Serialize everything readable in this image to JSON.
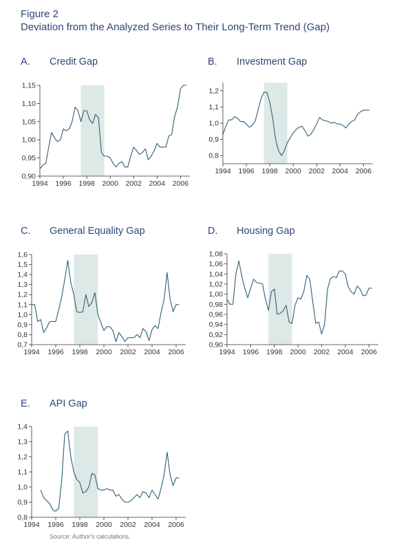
{
  "figure": {
    "label": "Figure 2",
    "title": "Deviation from the Analyzed Series to Their Long-Term Trend (Gap)",
    "source": "Source: Author's calculations."
  },
  "colors": {
    "line": "#2c5f73",
    "shade": "#dde9e6",
    "axis": "#333333",
    "title": "#2f4478"
  },
  "chart_data": [
    {
      "id": "A",
      "type": "line",
      "letter": "A.",
      "title": "Credit Gap",
      "xlim": [
        1994,
        2006.8
      ],
      "ylim": [
        0.9,
        1.15
      ],
      "yticks": [
        0.9,
        0.95,
        1.0,
        1.05,
        1.1,
        1.15
      ],
      "ytick_labels": [
        "0,90",
        "0,95",
        "1,00",
        "1,05",
        "1,10",
        "1,15"
      ],
      "xticks": [
        1994,
        1996,
        1998,
        2000,
        2002,
        2004,
        2006
      ],
      "xtick_labels": [
        "1994",
        "1996",
        "1998",
        "2000",
        "2002",
        "2004",
        "2006"
      ],
      "shade": [
        1997.5,
        1999.5
      ],
      "x": [
        1994.0,
        1994.25,
        1994.5,
        1994.75,
        1995.0,
        1995.25,
        1995.5,
        1995.75,
        1996.0,
        1996.25,
        1996.5,
        1996.75,
        1997.0,
        1997.25,
        1997.5,
        1997.75,
        1998.0,
        1998.25,
        1998.5,
        1998.75,
        1999.0,
        1999.25,
        1999.5,
        1999.75,
        2000.0,
        2000.25,
        2000.5,
        2000.75,
        2001.0,
        2001.25,
        2001.5,
        2001.75,
        2002.0,
        2002.25,
        2002.5,
        2002.75,
        2003.0,
        2003.25,
        2003.5,
        2003.75,
        2004.0,
        2004.25,
        2004.5,
        2004.75,
        2005.0,
        2005.25,
        2005.5,
        2005.75,
        2006.0,
        2006.25,
        2006.5
      ],
      "y": [
        0.92,
        0.93,
        0.935,
        0.98,
        1.02,
        1.005,
        0.995,
        1.0,
        1.03,
        1.025,
        1.03,
        1.05,
        1.09,
        1.08,
        1.05,
        1.08,
        1.08,
        1.055,
        1.045,
        1.07,
        1.06,
        0.965,
        0.955,
        0.955,
        0.95,
        0.935,
        0.925,
        0.935,
        0.94,
        0.925,
        0.925,
        0.955,
        0.98,
        0.97,
        0.96,
        0.965,
        0.975,
        0.945,
        0.955,
        0.97,
        0.99,
        0.98,
        0.98,
        0.98,
        1.01,
        1.015,
        1.065,
        1.09,
        1.14,
        1.15,
        1.15
      ]
    },
    {
      "id": "B",
      "type": "line",
      "letter": "B.",
      "title": "Investment Gap",
      "xlim": [
        1994,
        2006.8
      ],
      "ylim": [
        0.75,
        1.25
      ],
      "yticks": [
        0.8,
        0.9,
        1.0,
        1.1,
        1.2
      ],
      "ytick_labels": [
        "0,8",
        "0,9",
        "1,0",
        "1,1",
        "1,2"
      ],
      "xticks": [
        1994,
        1996,
        1998,
        2000,
        2002,
        2004,
        2006
      ],
      "xtick_labels": [
        "1994",
        "1996",
        "1998",
        "2000",
        "2002",
        "2004",
        "2006"
      ],
      "shade": [
        1997.5,
        1999.5
      ],
      "x": [
        1994.0,
        1994.25,
        1994.5,
        1994.75,
        1995.0,
        1995.25,
        1995.5,
        1995.75,
        1996.0,
        1996.25,
        1996.5,
        1996.75,
        1997.0,
        1997.25,
        1997.5,
        1997.75,
        1998.0,
        1998.25,
        1998.5,
        1998.75,
        1999.0,
        1999.25,
        1999.5,
        1999.75,
        2000.0,
        2000.25,
        2000.5,
        2000.75,
        2001.0,
        2001.25,
        2001.5,
        2001.75,
        2002.0,
        2002.25,
        2002.5,
        2002.75,
        2003.0,
        2003.25,
        2003.5,
        2003.75,
        2004.0,
        2004.25,
        2004.5,
        2004.75,
        2005.0,
        2005.25,
        2005.5,
        2005.75,
        2006.0,
        2006.25,
        2006.5
      ],
      "y": [
        0.93,
        0.98,
        1.02,
        1.02,
        1.04,
        1.03,
        1.01,
        1.01,
        0.995,
        0.975,
        0.985,
        1.01,
        1.08,
        1.15,
        1.19,
        1.19,
        1.13,
        1.03,
        0.9,
        0.83,
        0.8,
        0.83,
        0.88,
        0.91,
        0.94,
        0.96,
        0.975,
        0.98,
        0.955,
        0.92,
        0.93,
        0.96,
        0.995,
        1.035,
        1.02,
        1.015,
        1.01,
        1.0,
        1.005,
        0.995,
        0.995,
        0.985,
        0.97,
        0.995,
        1.01,
        1.02,
        1.055,
        1.07,
        1.08,
        1.08,
        1.08
      ]
    },
    {
      "id": "C",
      "type": "line",
      "letter": "C.",
      "title": "General Equality Gap",
      "xlim": [
        1994,
        2006.8
      ],
      "ylim": [
        0.7,
        1.6
      ],
      "yticks": [
        0.7,
        0.8,
        0.9,
        1.0,
        1.1,
        1.2,
        1.3,
        1.4,
        1.5,
        1.6
      ],
      "ytick_labels": [
        "0,7",
        "0,8",
        "0,9",
        "1,0",
        "1,1",
        "1,2",
        "1,3",
        "1,4",
        "1,5",
        "1,6"
      ],
      "xticks": [
        1994,
        1996,
        1998,
        2000,
        2002,
        2004,
        2006
      ],
      "xtick_labels": [
        "1994",
        "1996",
        "1998",
        "2000",
        "2002",
        "2004",
        "2006"
      ],
      "shade": [
        1997.5,
        1999.5
      ],
      "x": [
        1994.0,
        1994.25,
        1994.5,
        1994.75,
        1995.0,
        1995.25,
        1995.5,
        1995.75,
        1996.0,
        1996.25,
        1996.5,
        1996.75,
        1997.0,
        1997.25,
        1997.5,
        1997.75,
        1998.0,
        1998.25,
        1998.5,
        1998.75,
        1999.0,
        1999.25,
        1999.5,
        1999.75,
        2000.0,
        2000.25,
        2000.5,
        2000.75,
        2001.0,
        2001.25,
        2001.5,
        2001.75,
        2002.0,
        2002.25,
        2002.5,
        2002.75,
        2003.0,
        2003.25,
        2003.5,
        2003.75,
        2004.0,
        2004.25,
        2004.5,
        2004.75,
        2005.0,
        2005.25,
        2005.5,
        2005.75,
        2006.0,
        2006.25
      ],
      "y": [
        1.1,
        1.1,
        0.93,
        0.95,
        0.82,
        0.87,
        0.93,
        0.93,
        0.93,
        1.05,
        1.18,
        1.35,
        1.54,
        1.32,
        1.2,
        1.03,
        1.02,
        1.03,
        1.2,
        1.08,
        1.12,
        1.22,
        1.0,
        0.92,
        0.84,
        0.88,
        0.88,
        0.84,
        0.73,
        0.82,
        0.78,
        0.73,
        0.77,
        0.77,
        0.77,
        0.8,
        0.77,
        0.86,
        0.83,
        0.74,
        0.85,
        0.89,
        0.86,
        1.02,
        1.15,
        1.42,
        1.15,
        1.03,
        1.1,
        1.1
      ]
    },
    {
      "id": "D",
      "type": "line",
      "letter": "D.",
      "title": "Housing Gap",
      "xlim": [
        1994,
        2006.8
      ],
      "ylim": [
        0.9,
        1.08
      ],
      "yticks": [
        0.9,
        0.92,
        0.94,
        0.96,
        0.98,
        1.0,
        1.02,
        1.04,
        1.06,
        1.08
      ],
      "ytick_labels": [
        "0,90",
        "0,92",
        "0,94",
        "0,96",
        "0,98",
        "1,00",
        "1,02",
        "1,04",
        "1,06",
        "1,08"
      ],
      "xticks": [
        1994,
        1996,
        1998,
        2000,
        2002,
        2004,
        2006
      ],
      "xtick_labels": [
        "1994",
        "1996",
        "1998",
        "2000",
        "2002",
        "2004",
        "2006"
      ],
      "shade": [
        1997.5,
        1999.5
      ],
      "x": [
        1994.0,
        1994.25,
        1994.5,
        1994.75,
        1995.0,
        1995.25,
        1995.5,
        1995.75,
        1996.0,
        1996.25,
        1996.5,
        1996.75,
        1997.0,
        1997.25,
        1997.5,
        1997.75,
        1998.0,
        1998.25,
        1998.5,
        1998.75,
        1999.0,
        1999.25,
        1999.5,
        1999.75,
        2000.0,
        2000.25,
        2000.5,
        2000.75,
        2001.0,
        2001.25,
        2001.5,
        2001.75,
        2002.0,
        2002.25,
        2002.5,
        2002.75,
        2003.0,
        2003.25,
        2003.5,
        2003.75,
        2004.0,
        2004.25,
        2004.5,
        2004.75,
        2005.0,
        2005.25,
        2005.5,
        2005.75,
        2006.0,
        2006.25
      ],
      "y": [
        0.99,
        0.98,
        0.98,
        1.04,
        1.066,
        1.035,
        1.012,
        0.993,
        1.012,
        1.03,
        1.023,
        1.022,
        1.02,
        0.99,
        0.968,
        1.005,
        1.01,
        0.96,
        0.962,
        0.967,
        0.978,
        0.945,
        0.942,
        0.978,
        0.993,
        0.99,
        1.006,
        1.037,
        1.03,
        0.985,
        0.942,
        0.945,
        0.921,
        0.94,
        1.01,
        1.031,
        1.035,
        1.033,
        1.046,
        1.046,
        1.04,
        1.015,
        1.005,
        1.0,
        1.016,
        1.01,
        0.997,
        0.998,
        1.012,
        1.012
      ]
    },
    {
      "id": "E",
      "type": "line",
      "letter": "E.",
      "title": "API Gap",
      "xlim": [
        1994,
        2006.8
      ],
      "ylim": [
        0.8,
        1.4
      ],
      "yticks": [
        0.8,
        0.9,
        1.0,
        1.1,
        1.2,
        1.3,
        1.4
      ],
      "ytick_labels": [
        "0,8",
        "0,9",
        "1,0",
        "1,1",
        "1,2",
        "1,3",
        "1,4"
      ],
      "xticks": [
        1994,
        1996,
        1998,
        2000,
        2002,
        2004,
        2006
      ],
      "xtick_labels": [
        "1994",
        "1996",
        "1998",
        "2000",
        "2002",
        "2004",
        "2006"
      ],
      "shade": [
        1997.5,
        1999.5
      ],
      "x": [
        1994.75,
        1995.0,
        1995.25,
        1995.5,
        1995.75,
        1996.0,
        1996.25,
        1996.5,
        1996.75,
        1997.0,
        1997.25,
        1997.5,
        1997.75,
        1998.0,
        1998.25,
        1998.5,
        1998.75,
        1999.0,
        1999.25,
        1999.5,
        1999.75,
        2000.0,
        2000.25,
        2000.5,
        2000.75,
        2001.0,
        2001.25,
        2001.5,
        2001.75,
        2002.0,
        2002.25,
        2002.5,
        2002.75,
        2003.0,
        2003.25,
        2003.5,
        2003.75,
        2004.0,
        2004.25,
        2004.5,
        2004.75,
        2005.0,
        2005.25,
        2005.5,
        2005.75,
        2006.0,
        2006.25
      ],
      "y": [
        0.98,
        0.93,
        0.91,
        0.89,
        0.85,
        0.84,
        0.86,
        1.05,
        1.35,
        1.37,
        1.2,
        1.1,
        1.05,
        1.03,
        0.96,
        0.97,
        1.0,
        1.09,
        1.08,
        0.99,
        0.98,
        0.98,
        0.99,
        0.98,
        0.98,
        0.94,
        0.95,
        0.92,
        0.9,
        0.9,
        0.91,
        0.93,
        0.95,
        0.93,
        0.97,
        0.96,
        0.93,
        0.98,
        0.95,
        0.92,
        0.99,
        1.08,
        1.23,
        1.08,
        1.01,
        1.06,
        1.06
      ]
    }
  ]
}
